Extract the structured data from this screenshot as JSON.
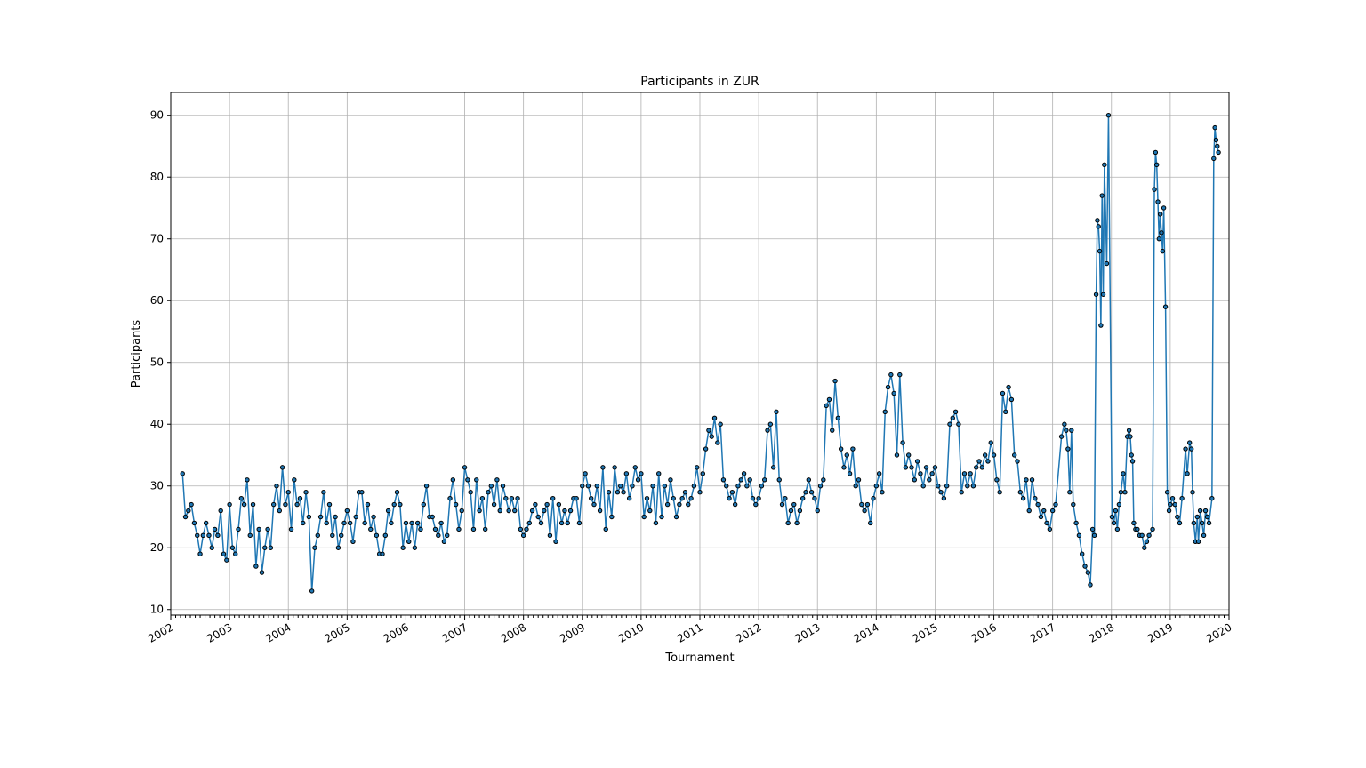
{
  "chart_data": {
    "type": "line",
    "title": "Participants in ZUR",
    "x_label": "Tournament",
    "y_label": "Participants",
    "color": "#1f77b4",
    "marker_edge": "#000000",
    "grid": true,
    "xlim": [
      2002,
      2020
    ],
    "xticks": [
      2002,
      2003,
      2004,
      2005,
      2006,
      2007,
      2008,
      2009,
      2010,
      2011,
      2012,
      2013,
      2014,
      2015,
      2016,
      2017,
      2018,
      2019,
      2020
    ],
    "ylim": [
      9.1,
      93.7
    ],
    "yticks": [
      10,
      20,
      30,
      40,
      50,
      60,
      70,
      80,
      90
    ],
    "x": [
      2002.2,
      2002.25,
      2002.3,
      2002.35,
      2002.4,
      2002.45,
      2002.5,
      2002.55,
      2002.6,
      2002.65,
      2002.7,
      2002.75,
      2002.8,
      2002.85,
      2002.9,
      2002.95,
      2003.0,
      2003.05,
      2003.1,
      2003.15,
      2003.2,
      2003.25,
      2003.3,
      2003.35,
      2003.4,
      2003.45,
      2003.5,
      2003.55,
      2003.6,
      2003.65,
      2003.7,
      2003.75,
      2003.8,
      2003.85,
      2003.9,
      2003.95,
      2004.0,
      2004.05,
      2004.1,
      2004.15,
      2004.2,
      2004.25,
      2004.3,
      2004.35,
      2004.4,
      2004.45,
      2004.5,
      2004.55,
      2004.6,
      2004.65,
      2004.7,
      2004.75,
      2004.8,
      2004.85,
      2004.9,
      2004.95,
      2005.0,
      2005.05,
      2005.1,
      2005.15,
      2005.2,
      2005.25,
      2005.3,
      2005.35,
      2005.4,
      2005.45,
      2005.5,
      2005.55,
      2005.6,
      2005.65,
      2005.7,
      2005.75,
      2005.8,
      2005.85,
      2005.9,
      2005.95,
      2006.0,
      2006.05,
      2006.1,
      2006.15,
      2006.2,
      2006.25,
      2006.3,
      2006.35,
      2006.4,
      2006.45,
      2006.5,
      2006.55,
      2006.6,
      2006.65,
      2006.7,
      2006.75,
      2006.8,
      2006.85,
      2006.9,
      2006.95,
      2007.0,
      2007.05,
      2007.1,
      2007.15,
      2007.2,
      2007.25,
      2007.3,
      2007.35,
      2007.4,
      2007.45,
      2007.5,
      2007.55,
      2007.6,
      2007.65,
      2007.7,
      2007.75,
      2007.8,
      2007.85,
      2007.9,
      2007.95,
      2008.0,
      2008.05,
      2008.1,
      2008.15,
      2008.2,
      2008.25,
      2008.3,
      2008.35,
      2008.4,
      2008.45,
      2008.5,
      2008.55,
      2008.6,
      2008.65,
      2008.7,
      2008.75,
      2008.8,
      2008.85,
      2008.9,
      2008.95,
      2009.0,
      2009.05,
      2009.1,
      2009.15,
      2009.2,
      2009.25,
      2009.3,
      2009.35,
      2009.4,
      2009.45,
      2009.5,
      2009.55,
      2009.6,
      2009.65,
      2009.7,
      2009.75,
      2009.8,
      2009.85,
      2009.9,
      2009.95,
      2010.0,
      2010.05,
      2010.1,
      2010.15,
      2010.2,
      2010.25,
      2010.3,
      2010.35,
      2010.4,
      2010.45,
      2010.5,
      2010.55,
      2010.6,
      2010.65,
      2010.7,
      2010.75,
      2010.8,
      2010.85,
      2010.9,
      2010.95,
      2011.0,
      2011.05,
      2011.1,
      2011.15,
      2011.2,
      2011.25,
      2011.3,
      2011.35,
      2011.4,
      2011.45,
      2011.5,
      2011.55,
      2011.6,
      2011.65,
      2011.7,
      2011.75,
      2011.8,
      2011.85,
      2011.9,
      2011.95,
      2012.0,
      2012.05,
      2012.1,
      2012.15,
      2012.2,
      2012.25,
      2012.3,
      2012.35,
      2012.4,
      2012.45,
      2012.5,
      2012.55,
      2012.6,
      2012.65,
      2012.7,
      2012.75,
      2012.8,
      2012.85,
      2012.9,
      2012.95,
      2013.0,
      2013.05,
      2013.1,
      2013.15,
      2013.2,
      2013.25,
      2013.3,
      2013.35,
      2013.4,
      2013.45,
      2013.5,
      2013.55,
      2013.6,
      2013.65,
      2013.7,
      2013.75,
      2013.8,
      2013.85,
      2013.9,
      2013.95,
      2014.0,
      2014.05,
      2014.1,
      2014.15,
      2014.2,
      2014.25,
      2014.3,
      2014.35,
      2014.4,
      2014.45,
      2014.5,
      2014.55,
      2014.6,
      2014.65,
      2014.7,
      2014.75,
      2014.8,
      2014.85,
      2014.9,
      2014.95,
      2015.0,
      2015.05,
      2015.1,
      2015.15,
      2015.2,
      2015.25,
      2015.3,
      2015.35,
      2015.4,
      2015.45,
      2015.5,
      2015.55,
      2015.6,
      2015.65,
      2015.7,
      2015.75,
      2015.8,
      2015.85,
      2015.9,
      2015.95,
      2016.0,
      2016.05,
      2016.1,
      2016.15,
      2016.2,
      2016.25,
      2016.3,
      2016.35,
      2016.4,
      2016.45,
      2016.5,
      2016.55,
      2016.6,
      2016.65,
      2016.7,
      2016.75,
      2016.8,
      2016.85,
      2016.9,
      2016.95,
      2017.0,
      2017.05,
      2017.15,
      2017.2,
      2017.23,
      2017.26,
      2017.29,
      2017.32,
      2017.35,
      2017.4,
      2017.45,
      2017.5,
      2017.55,
      2017.6,
      2017.64,
      2017.68,
      2017.71,
      2017.74,
      2017.76,
      2017.78,
      2017.8,
      2017.82,
      2017.84,
      2017.86,
      2017.88,
      2017.92,
      2017.95,
      2018.01,
      2018.04,
      2018.07,
      2018.1,
      2018.13,
      2018.16,
      2018.2,
      2018.23,
      2018.27,
      2018.3,
      2018.32,
      2018.34,
      2018.36,
      2018.38,
      2018.41,
      2018.44,
      2018.48,
      2018.52,
      2018.56,
      2018.6,
      2018.64,
      2018.7,
      2018.73,
      2018.75,
      2018.77,
      2018.79,
      2018.81,
      2018.83,
      2018.85,
      2018.87,
      2018.89,
      2018.92,
      2018.95,
      2018.98,
      2019.0,
      2019.04,
      2019.08,
      2019.12,
      2019.16,
      2019.2,
      2019.26,
      2019.29,
      2019.33,
      2019.36,
      2019.38,
      2019.4,
      2019.43,
      2019.46,
      2019.48,
      2019.51,
      2019.54,
      2019.57,
      2019.6,
      2019.63,
      2019.66,
      2019.71,
      2019.74,
      2019.76,
      2019.78,
      2019.8,
      2019.82
    ],
    "values": [
      32,
      25,
      26,
      27,
      24,
      22,
      19,
      22,
      24,
      22,
      20,
      23,
      22,
      26,
      19,
      18,
      27,
      20,
      19,
      23,
      28,
      27,
      31,
      22,
      27,
      17,
      23,
      16,
      20,
      23,
      20,
      27,
      30,
      26,
      33,
      27,
      29,
      23,
      31,
      27,
      28,
      24,
      29,
      25,
      13,
      20,
      22,
      25,
      29,
      24,
      27,
      22,
      25,
      20,
      22,
      24,
      26,
      24,
      21,
      25,
      29,
      29,
      24,
      27,
      23,
      25,
      22,
      19,
      19,
      22,
      26,
      24,
      27,
      29,
      27,
      20,
      24,
      21,
      24,
      20,
      24,
      23,
      27,
      30,
      25,
      25,
      23,
      22,
      24,
      21,
      22,
      28,
      31,
      27,
      23,
      26,
      33,
      31,
      29,
      23,
      31,
      26,
      28,
      23,
      29,
      30,
      27,
      31,
      26,
      30,
      28,
      26,
      28,
      26,
      28,
      23,
      22,
      23,
      24,
      26,
      27,
      25,
      24,
      26,
      27,
      22,
      28,
      21,
      27,
      24,
      26,
      24,
      26,
      28,
      28,
      24,
      30,
      32,
      30,
      28,
      27,
      30,
      26,
      33,
      23,
      29,
      25,
      33,
      29,
      30,
      29,
      32,
      28,
      30,
      33,
      31,
      32,
      25,
      28,
      26,
      30,
      24,
      32,
      25,
      30,
      27,
      31,
      28,
      25,
      27,
      28,
      29,
      27,
      28,
      30,
      33,
      29,
      32,
      36,
      39,
      38,
      41,
      37,
      40,
      31,
      30,
      28,
      29,
      27,
      30,
      31,
      32,
      30,
      31,
      28,
      27,
      28,
      30,
      31,
      39,
      40,
      33,
      42,
      31,
      27,
      28,
      24,
      26,
      27,
      24,
      26,
      28,
      29,
      31,
      29,
      28,
      26,
      30,
      31,
      43,
      44,
      39,
      47,
      41,
      36,
      33,
      35,
      32,
      36,
      30,
      31,
      27,
      26,
      27,
      24,
      28,
      30,
      32,
      29,
      42,
      46,
      48,
      45,
      35,
      48,
      37,
      33,
      35,
      33,
      31,
      34,
      32,
      30,
      33,
      31,
      32,
      33,
      30,
      29,
      28,
      30,
      40,
      41,
      42,
      40,
      29,
      32,
      30,
      32,
      30,
      33,
      34,
      33,
      35,
      34,
      37,
      35,
      31,
      29,
      45,
      42,
      46,
      44,
      35,
      34,
      29,
      28,
      31,
      26,
      31,
      28,
      27,
      25,
      26,
      24,
      23,
      26,
      27,
      38,
      40,
      39,
      36,
      29,
      39,
      27,
      24,
      22,
      19,
      17,
      16,
      14,
      23,
      22,
      61,
      73,
      72,
      68,
      56,
      77,
      61,
      82,
      66,
      90,
      25,
      24,
      26,
      23,
      27,
      29,
      32,
      29,
      38,
      39,
      38,
      35,
      34,
      24,
      23,
      23,
      22,
      22,
      20,
      21,
      22,
      23,
      78,
      84,
      82,
      76,
      70,
      74,
      71,
      68,
      75,
      59,
      29,
      26,
      27,
      28,
      27,
      25,
      24,
      28,
      36,
      32,
      37,
      36,
      29,
      24,
      21,
      25,
      21,
      26,
      24,
      22,
      26,
      25,
      24,
      28,
      83,
      88,
      86,
      85,
      84
    ]
  }
}
